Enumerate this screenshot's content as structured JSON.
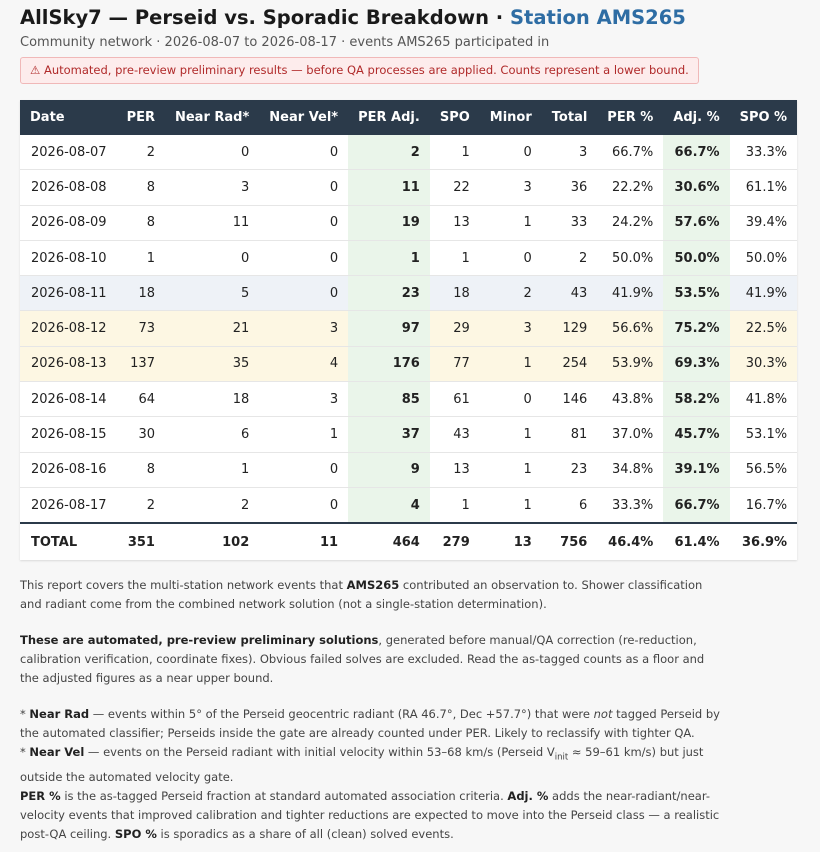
{
  "header": {
    "title": "AllSky7 — Perseid vs. Sporadic Breakdown",
    "station_prefix": " · ",
    "station": "Station AMS265",
    "subtitle": "Community network · 2026-08-07 to 2026-08-17 · events AMS265 participated in",
    "warning": "⚠ Automated, pre-review preliminary results — before QA processes are applied. Counts represent a lower bound."
  },
  "table": {
    "columns": [
      "Date",
      "PER",
      "Near Rad*",
      "Near Vel*",
      "PER Adj.",
      "SPO",
      "Minor",
      "Total",
      "PER %",
      "Adj. %",
      "SPO %"
    ],
    "rows": [
      {
        "date": "2026-08-07",
        "per": "2",
        "near_rad": "0",
        "near_vel": "0",
        "per_adj": "2",
        "spo": "1",
        "minor": "0",
        "total": "3",
        "per_pct": "66.7%",
        "adj_pct": "66.7%",
        "spo_pct": "33.3%",
        "highlight": ""
      },
      {
        "date": "2026-08-08",
        "per": "8",
        "near_rad": "3",
        "near_vel": "0",
        "per_adj": "11",
        "spo": "22",
        "minor": "3",
        "total": "36",
        "per_pct": "22.2%",
        "adj_pct": "30.6%",
        "spo_pct": "61.1%",
        "highlight": ""
      },
      {
        "date": "2026-08-09",
        "per": "8",
        "near_rad": "11",
        "near_vel": "0",
        "per_adj": "19",
        "spo": "13",
        "minor": "1",
        "total": "33",
        "per_pct": "24.2%",
        "adj_pct": "57.6%",
        "spo_pct": "39.4%",
        "highlight": ""
      },
      {
        "date": "2026-08-10",
        "per": "1",
        "near_rad": "0",
        "near_vel": "0",
        "per_adj": "1",
        "spo": "1",
        "minor": "0",
        "total": "2",
        "per_pct": "50.0%",
        "adj_pct": "50.0%",
        "spo_pct": "50.0%",
        "highlight": ""
      },
      {
        "date": "2026-08-11",
        "per": "18",
        "near_rad": "5",
        "near_vel": "0",
        "per_adj": "23",
        "spo": "18",
        "minor": "2",
        "total": "43",
        "per_pct": "41.9%",
        "adj_pct": "53.5%",
        "spo_pct": "41.9%",
        "highlight": "blue"
      },
      {
        "date": "2026-08-12",
        "per": "73",
        "near_rad": "21",
        "near_vel": "3",
        "per_adj": "97",
        "spo": "29",
        "minor": "3",
        "total": "129",
        "per_pct": "56.6%",
        "adj_pct": "75.2%",
        "spo_pct": "22.5%",
        "highlight": "yellow"
      },
      {
        "date": "2026-08-13",
        "per": "137",
        "near_rad": "35",
        "near_vel": "4",
        "per_adj": "176",
        "spo": "77",
        "minor": "1",
        "total": "254",
        "per_pct": "53.9%",
        "adj_pct": "69.3%",
        "spo_pct": "30.3%",
        "highlight": "yellow"
      },
      {
        "date": "2026-08-14",
        "per": "64",
        "near_rad": "18",
        "near_vel": "3",
        "per_adj": "85",
        "spo": "61",
        "minor": "0",
        "total": "146",
        "per_pct": "43.8%",
        "adj_pct": "58.2%",
        "spo_pct": "41.8%",
        "highlight": ""
      },
      {
        "date": "2026-08-15",
        "per": "30",
        "near_rad": "6",
        "near_vel": "1",
        "per_adj": "37",
        "spo": "43",
        "minor": "1",
        "total": "81",
        "per_pct": "37.0%",
        "adj_pct": "45.7%",
        "spo_pct": "53.1%",
        "highlight": ""
      },
      {
        "date": "2026-08-16",
        "per": "8",
        "near_rad": "1",
        "near_vel": "0",
        "per_adj": "9",
        "spo": "13",
        "minor": "1",
        "total": "23",
        "per_pct": "34.8%",
        "adj_pct": "39.1%",
        "spo_pct": "56.5%",
        "highlight": ""
      },
      {
        "date": "2026-08-17",
        "per": "2",
        "near_rad": "2",
        "near_vel": "0",
        "per_adj": "4",
        "spo": "1",
        "minor": "1",
        "total": "6",
        "per_pct": "33.3%",
        "adj_pct": "66.7%",
        "spo_pct": "16.7%",
        "highlight": ""
      }
    ],
    "totals": {
      "date": "TOTAL",
      "per": "351",
      "near_rad": "102",
      "near_vel": "11",
      "per_adj": "464",
      "spo": "279",
      "minor": "13",
      "total": "756",
      "per_pct": "46.4%",
      "adj_pct": "61.4%",
      "spo_pct": "36.9%"
    }
  },
  "notes": {
    "p1_a": "This report covers the multi-station network events that ",
    "p1_b": "AMS265",
    "p1_c": " contributed an observation to. Shower classification and radiant come from the combined network solution (not a single-station determination).",
    "p2_a": "These are automated, pre-review preliminary solutions",
    "p2_b": ", generated before manual/QA correction (re-reduction, calibration verification, coordinate fixes). Obvious failed solves are excluded. Read the as-tagged counts as a floor and the adjusted figures as a near upper bound.",
    "p3_star1": "* ",
    "p3_nearrad": "Near Rad",
    "p3_a": " — events within 5° of the Perseid geocentric radiant (RA 46.7°, Dec +57.7°) that were ",
    "p3_not": "not",
    "p3_b": " tagged Perseid by the automated classifier; Perseids inside the gate are already counted under PER. Likely to reclassify with tighter QA.",
    "p3_star2": "* ",
    "p3_nearvel": "Near Vel",
    "p3_c": " — events on the Perseid radiant with initial velocity within 53–68 km/s (Perseid V",
    "p3_sub": "init",
    "p3_d": " ≈ 59–61 km/s) but just outside the automated velocity gate.",
    "p3_perpct": "PER %",
    "p3_e": " is the as-tagged Perseid fraction at standard automated association criteria. ",
    "p3_adjpct": "Adj. %",
    "p3_f": " adds the near-radiant/near-velocity events that improved calibration and tighter reductions are expected to move into the Perseid class — a realistic post-QA ceiling. ",
    "p3_spopct": "SPO %",
    "p3_g": " is sporadics as a share of all (clean) solved events."
  }
}
